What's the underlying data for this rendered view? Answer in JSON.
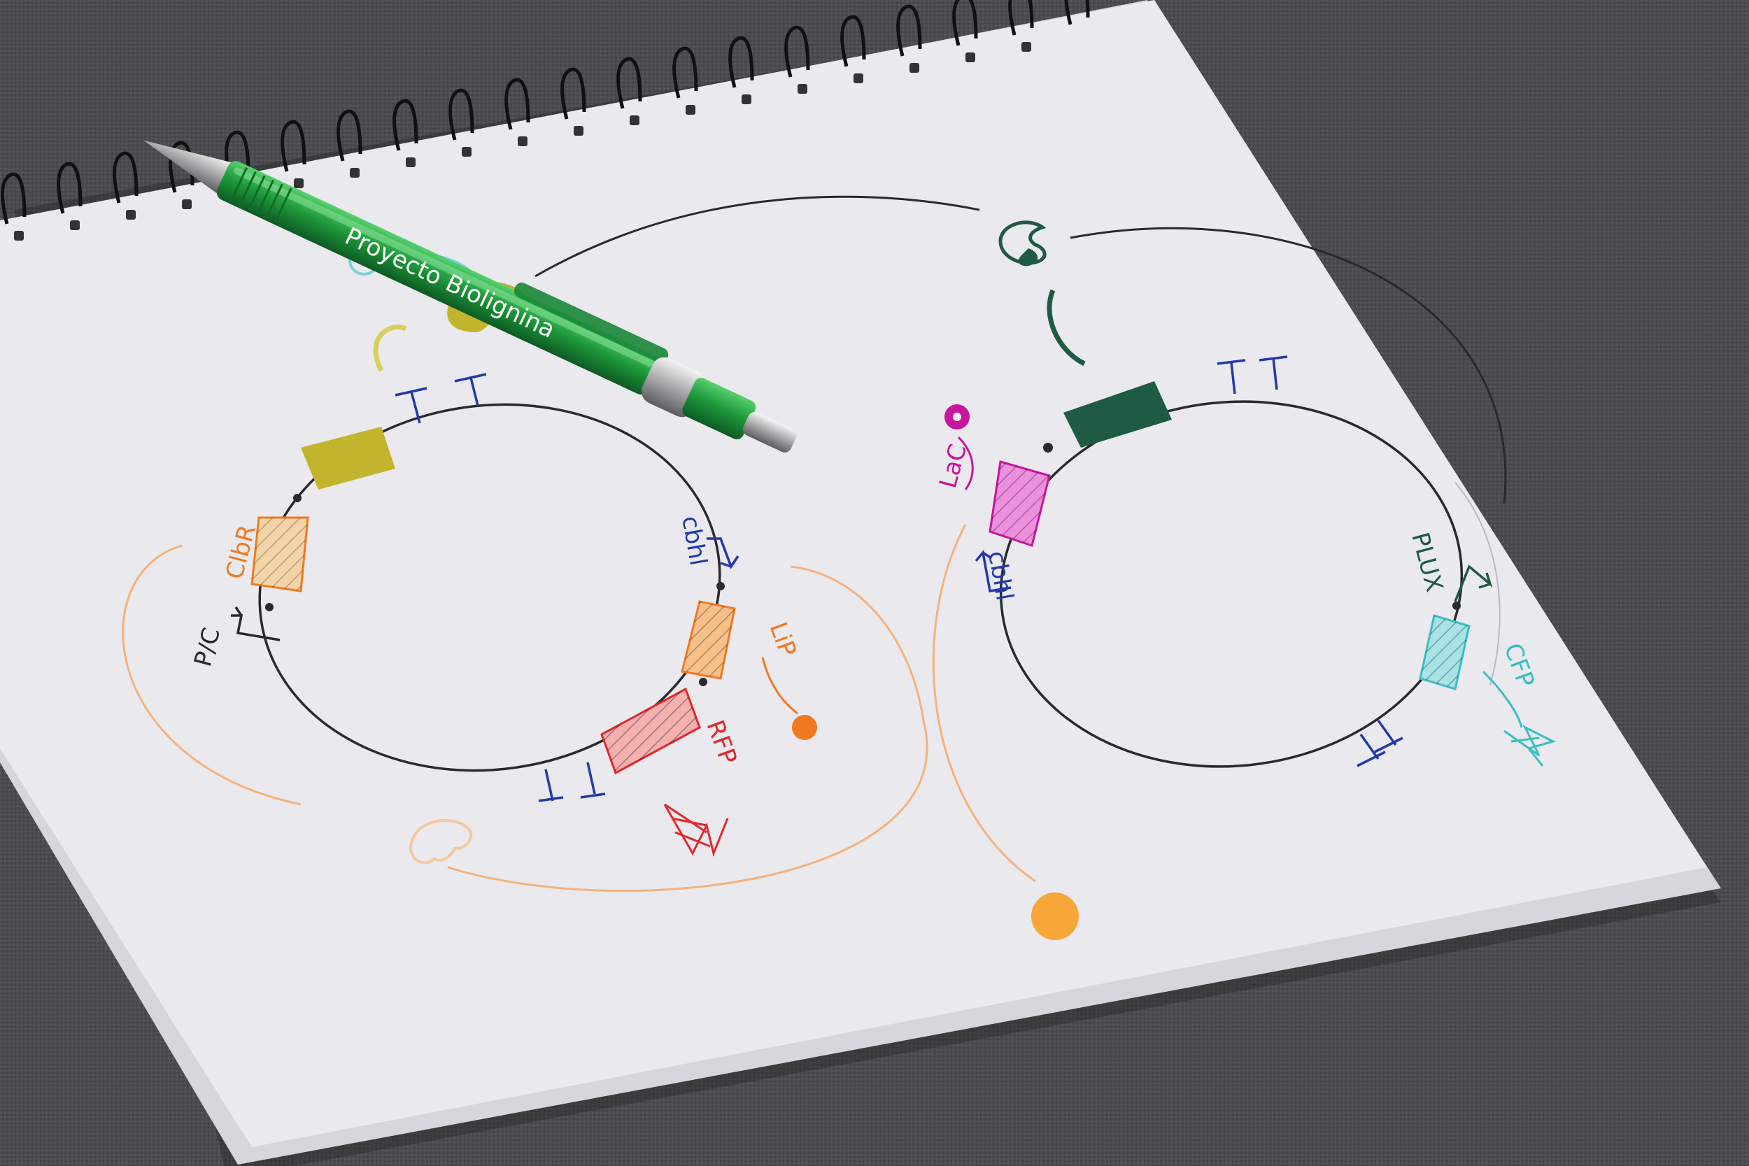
{
  "colors": {
    "carpet": "#4b4c4f",
    "paper": "#e9e9ee",
    "ink_black": "#2a2a2c",
    "ink_blue": "#2439a8",
    "ink_orange": "#f07a22",
    "ink_orange_light": "#f5b27a",
    "ink_red": "#e0292b",
    "ink_olive": "#c2b52d",
    "ink_magenta": "#c8159e",
    "ink_teal": "#39bfc2",
    "ink_darkgreen": "#1f5a42",
    "ink_cyan_light": "#79d4d9",
    "pen_green": "#1f9a3c"
  },
  "pen": {
    "label": "Proyecto Biolignina"
  },
  "left_plasmid": {
    "labels": {
      "promoter_pic": "P/C",
      "gene_clbr": "ClbR",
      "promoter_cbhl": "cbhl",
      "gene_lip": "LiP",
      "gene_rfp": "RFP"
    }
  },
  "right_plasmid": {
    "labels": {
      "gene_lac": "LaC",
      "promoter_cbhl": "cbhl",
      "promoter_plux": "PLUX",
      "gene_cfp": "CFP"
    }
  }
}
